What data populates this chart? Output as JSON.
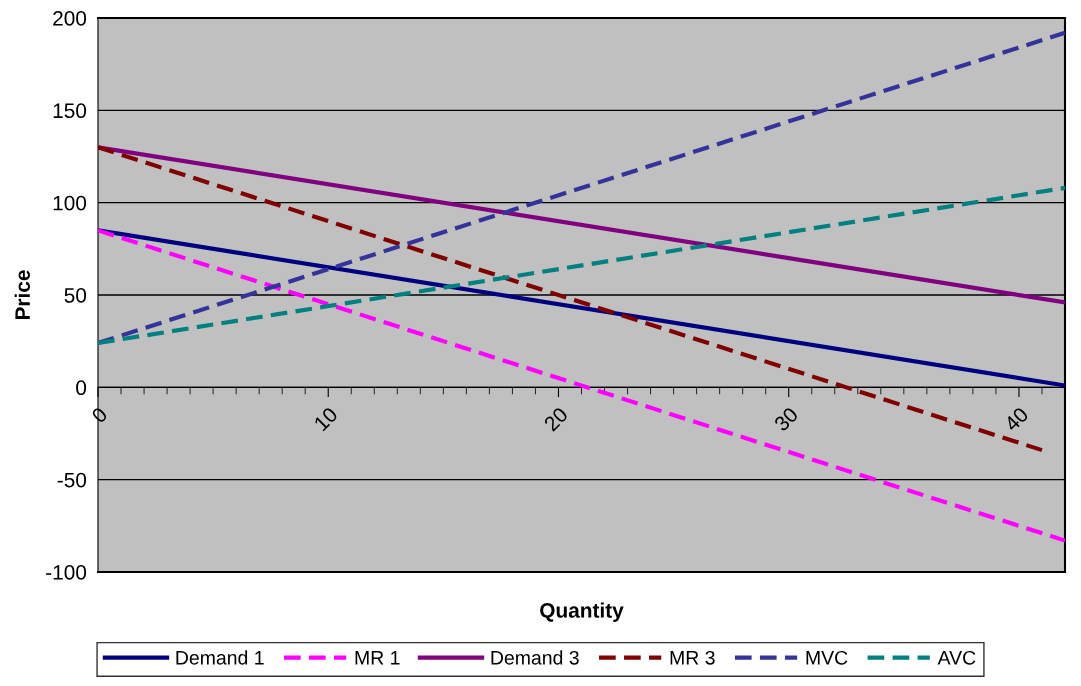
{
  "chart_data": {
    "type": "line",
    "xlabel": "Quantity",
    "ylabel": "Price",
    "xlim": [
      0,
      42
    ],
    "xticks": [
      0,
      10,
      20,
      30,
      40
    ],
    "ylim": [
      -100,
      200
    ],
    "yticks": [
      -100,
      -50,
      0,
      50,
      100,
      150,
      200
    ],
    "grid": "y",
    "legend": "bottom",
    "marker": "none",
    "series": [
      {
        "name": "Demand 1",
        "color": "#000080",
        "x": [
          0,
          42
        ],
        "values": [
          85,
          1
        ],
        "line_style": "solid"
      },
      {
        "name": "MR 1",
        "color": "#ff00ff",
        "x": [
          0,
          42
        ],
        "values": [
          85,
          -83
        ],
        "line_style": "dashed"
      },
      {
        "name": "Demand 3",
        "color": "#800080",
        "x": [
          0,
          42
        ],
        "values": [
          130,
          46
        ],
        "line_style": "solid"
      },
      {
        "name": "MR 3",
        "color": "#800000",
        "x": [
          0,
          41
        ],
        "values": [
          130,
          -34
        ],
        "line_style": "dashed"
      },
      {
        "name": "MVC",
        "color": "#333399",
        "x": [
          0,
          42
        ],
        "values": [
          24,
          192
        ],
        "line_style": "dashed"
      },
      {
        "name": "AVC",
        "color": "#008080",
        "x": [
          0,
          42
        ],
        "values": [
          24,
          108
        ],
        "line_style": "dashed"
      }
    ]
  }
}
